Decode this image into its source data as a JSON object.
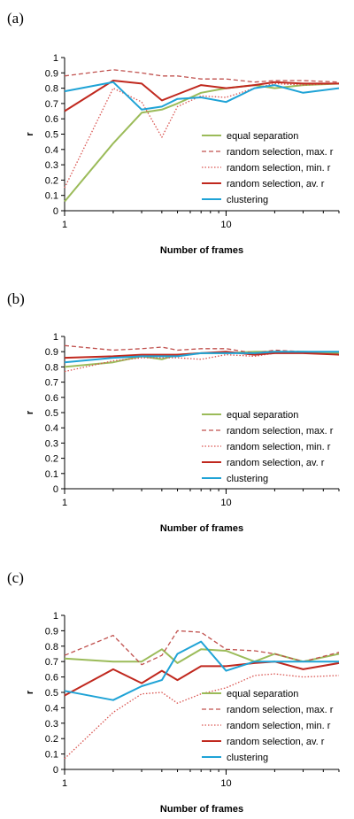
{
  "figure": {
    "colors": {
      "equal separation": "#9BBB59",
      "random selection, max. r": "#C0504D",
      "random selection, min. r": "#D9534F",
      "random selection, av. r": "#C0281E",
      "clustering": "#1FA3D6"
    },
    "line_styles": {
      "equal separation": "solid",
      "random selection, max. r": "dashed",
      "random selection, min. r": "dotted",
      "random selection, av. r": "solid",
      "clustering": "solid"
    }
  },
  "chart_data": [
    {
      "panel": "(a)",
      "type": "line",
      "xscale": "log",
      "xlim": [
        1,
        50
      ],
      "xticks": [
        1,
        10
      ],
      "ylim": [
        0,
        1
      ],
      "yticks": [
        0,
        0.1,
        0.2,
        0.3,
        0.4,
        0.5,
        0.6,
        0.7,
        0.8,
        0.9,
        1
      ],
      "xlabel": "Number of frames",
      "ylabel": "r",
      "grid": false,
      "legend": "lower-right",
      "series": [
        {
          "name": "equal separation",
          "x": [
            1,
            2,
            3,
            4,
            5,
            7,
            10,
            15,
            20,
            30,
            50
          ],
          "y": [
            0.06,
            0.44,
            0.64,
            0.66,
            0.7,
            0.77,
            0.8,
            0.82,
            0.8,
            0.82,
            0.83
          ]
        },
        {
          "name": "random selection, max. r",
          "x": [
            1,
            2,
            3,
            4,
            5,
            7,
            10,
            15,
            20,
            30,
            50
          ],
          "y": [
            0.88,
            0.92,
            0.9,
            0.88,
            0.88,
            0.86,
            0.86,
            0.84,
            0.85,
            0.85,
            0.84
          ]
        },
        {
          "name": "random selection, min. r",
          "x": [
            1,
            2,
            3,
            4,
            5,
            7,
            10,
            15,
            20,
            30,
            50
          ],
          "y": [
            0.15,
            0.8,
            0.71,
            0.48,
            0.68,
            0.75,
            0.74,
            0.8,
            0.83,
            0.82,
            0.83
          ]
        },
        {
          "name": "random selection, av. r",
          "x": [
            1,
            2,
            3,
            4,
            5,
            7,
            10,
            15,
            20,
            30,
            50
          ],
          "y": [
            0.65,
            0.85,
            0.83,
            0.72,
            0.76,
            0.82,
            0.8,
            0.82,
            0.84,
            0.83,
            0.83
          ]
        },
        {
          "name": "clustering",
          "x": [
            1,
            2,
            3,
            4,
            5,
            7,
            10,
            15,
            20,
            30,
            50
          ],
          "y": [
            0.78,
            0.84,
            0.66,
            0.68,
            0.73,
            0.74,
            0.71,
            0.8,
            0.82,
            0.77,
            0.8
          ]
        }
      ]
    },
    {
      "panel": "(b)",
      "type": "line",
      "xscale": "log",
      "xlim": [
        1,
        50
      ],
      "xticks": [
        1,
        10
      ],
      "ylim": [
        0,
        1
      ],
      "yticks": [
        0,
        0.1,
        0.2,
        0.3,
        0.4,
        0.5,
        0.6,
        0.7,
        0.8,
        0.9,
        1
      ],
      "xlabel": "Number of frames",
      "ylabel": "r",
      "grid": false,
      "legend": "lower-right",
      "series": [
        {
          "name": "equal separation",
          "x": [
            1,
            2,
            3,
            4,
            5,
            7,
            10,
            15,
            20,
            30,
            50
          ],
          "y": [
            0.8,
            0.83,
            0.87,
            0.85,
            0.88,
            0.89,
            0.89,
            0.9,
            0.9,
            0.9,
            0.89
          ]
        },
        {
          "name": "random selection, max. r",
          "x": [
            1,
            2,
            3,
            4,
            5,
            7,
            10,
            15,
            20,
            30,
            50
          ],
          "y": [
            0.94,
            0.91,
            0.92,
            0.93,
            0.91,
            0.92,
            0.92,
            0.89,
            0.91,
            0.9,
            0.9
          ]
        },
        {
          "name": "random selection, min. r",
          "x": [
            1,
            2,
            3,
            4,
            5,
            7,
            10,
            15,
            20,
            30,
            50
          ],
          "y": [
            0.77,
            0.84,
            0.86,
            0.86,
            0.86,
            0.85,
            0.88,
            0.87,
            0.89,
            0.89,
            0.88
          ]
        },
        {
          "name": "random selection, av. r",
          "x": [
            1,
            2,
            3,
            4,
            5,
            7,
            10,
            15,
            20,
            30,
            50
          ],
          "y": [
            0.86,
            0.87,
            0.88,
            0.88,
            0.88,
            0.89,
            0.9,
            0.88,
            0.89,
            0.89,
            0.88
          ]
        },
        {
          "name": "clustering",
          "x": [
            1,
            2,
            3,
            4,
            5,
            7,
            10,
            15,
            20,
            30,
            50
          ],
          "y": [
            0.83,
            0.86,
            0.87,
            0.87,
            0.87,
            0.89,
            0.89,
            0.89,
            0.9,
            0.9,
            0.9
          ]
        }
      ]
    },
    {
      "panel": "(c)",
      "type": "line",
      "xscale": "log",
      "xlim": [
        1,
        50
      ],
      "xticks": [
        1,
        10
      ],
      "ylim": [
        0,
        1
      ],
      "yticks": [
        0,
        0.1,
        0.2,
        0.3,
        0.4,
        0.5,
        0.6,
        0.7,
        0.8,
        0.9,
        1
      ],
      "xlabel": "Number of frames",
      "ylabel": "r",
      "grid": false,
      "legend": "lower-right",
      "series": [
        {
          "name": "equal separation",
          "x": [
            1,
            2,
            3,
            4,
            5,
            7,
            10,
            15,
            20,
            30,
            50
          ],
          "y": [
            0.72,
            0.7,
            0.7,
            0.78,
            0.69,
            0.78,
            0.77,
            0.7,
            0.75,
            0.7,
            0.75
          ]
        },
        {
          "name": "random selection, max. r",
          "x": [
            1,
            2,
            3,
            4,
            5,
            7,
            10,
            15,
            20,
            30,
            50
          ],
          "y": [
            0.74,
            0.87,
            0.68,
            0.74,
            0.9,
            0.89,
            0.78,
            0.77,
            0.75,
            0.7,
            0.76
          ]
        },
        {
          "name": "random selection, min. r",
          "x": [
            1,
            2,
            3,
            4,
            5,
            7,
            10,
            15,
            20,
            30,
            50
          ],
          "y": [
            0.07,
            0.37,
            0.49,
            0.5,
            0.43,
            0.49,
            0.53,
            0.61,
            0.62,
            0.6,
            0.61
          ]
        },
        {
          "name": "random selection, av. r",
          "x": [
            1,
            2,
            3,
            4,
            5,
            7,
            10,
            15,
            20,
            30,
            50
          ],
          "y": [
            0.48,
            0.65,
            0.56,
            0.64,
            0.58,
            0.67,
            0.67,
            0.69,
            0.7,
            0.65,
            0.69
          ]
        },
        {
          "name": "clustering",
          "x": [
            1,
            2,
            3,
            4,
            5,
            7,
            10,
            15,
            20,
            30,
            50
          ],
          "y": [
            0.51,
            0.45,
            0.54,
            0.58,
            0.75,
            0.83,
            0.64,
            0.7,
            0.7,
            0.7,
            0.7
          ]
        }
      ]
    }
  ]
}
